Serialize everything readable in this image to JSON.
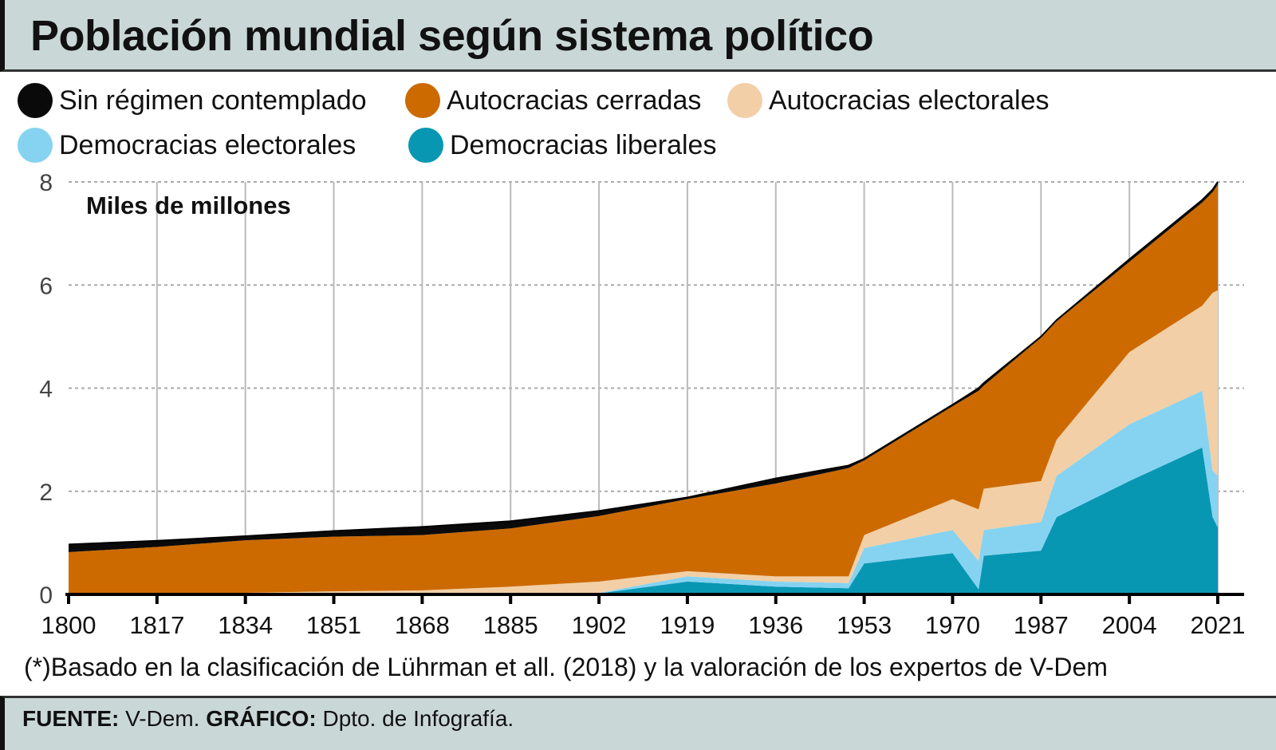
{
  "title": "Población mundial según sistema político",
  "legend": [
    {
      "label": "Sin régimen contemplado",
      "color": "#0a0a0a"
    },
    {
      "label": "Autocracias cerradas",
      "color": "#cc6a00"
    },
    {
      "label": "Autocracias electorales",
      "color": "#f2cfa6"
    },
    {
      "label": "Democracias electorales",
      "color": "#86d3f1"
    },
    {
      "label": "Democracias liberales",
      "color": "#0897b3"
    }
  ],
  "footnote": "(*)Basado en la clasificación de Lührman et all. (2018) y la valoración de los expertos de V-Dem",
  "footer": {
    "source_label": "FUENTE:",
    "source": "V-Dem.",
    "graphic_label": "GRÁFICO:",
    "graphic": "Dpto. de Infografía."
  },
  "chart_data": {
    "type": "area",
    "stacked": true,
    "ylabel": "Miles de millones",
    "ylim": [
      0,
      8
    ],
    "yticks": [
      0,
      2,
      4,
      6,
      8
    ],
    "xlim": [
      1800,
      2021
    ],
    "xticks": [
      1800,
      1817,
      1834,
      1851,
      1868,
      1885,
      1902,
      1919,
      1936,
      1953,
      1970,
      1987,
      2004,
      2021
    ],
    "grid": {
      "x": "solid",
      "y": "dotted"
    },
    "x": [
      1800,
      1817,
      1834,
      1851,
      1868,
      1885,
      1902,
      1919,
      1936,
      1950,
      1953,
      1970,
      1975,
      1976,
      1987,
      1990,
      2004,
      2018,
      2020,
      2021
    ],
    "series": [
      {
        "name": "Democracias liberales",
        "color": "#0897b3",
        "values": [
          0,
          0,
          0,
          0,
          0,
          0,
          0.02,
          0.25,
          0.15,
          0.12,
          0.6,
          0.8,
          0.1,
          0.75,
          0.85,
          1.5,
          2.2,
          2.85,
          1.5,
          1.3
        ]
      },
      {
        "name": "Democracias electorales",
        "color": "#86d3f1",
        "values": [
          0,
          0,
          0,
          0,
          0,
          0,
          0.01,
          0.1,
          0.1,
          0.1,
          0.3,
          0.45,
          0.55,
          0.5,
          0.55,
          0.8,
          1.1,
          1.1,
          0.9,
          1.0
        ]
      },
      {
        "name": "Autocracias electorales",
        "color": "#f2cfa6",
        "values": [
          0,
          0.02,
          0.03,
          0.06,
          0.08,
          0.15,
          0.22,
          0.1,
          0.1,
          0.13,
          0.25,
          0.6,
          1.0,
          0.8,
          0.8,
          0.7,
          1.4,
          1.65,
          3.45,
          3.6
        ]
      },
      {
        "name": "Autocracias cerradas",
        "color": "#cc6a00",
        "values": [
          0.82,
          0.9,
          1.02,
          1.06,
          1.07,
          1.13,
          1.27,
          1.4,
          1.8,
          2.1,
          1.45,
          1.8,
          2.3,
          2.0,
          2.78,
          2.3,
          1.75,
          2.0,
          1.95,
          2.05
        ]
      },
      {
        "name": "Sin régimen contemplado",
        "color": "#0a0a0a",
        "values": [
          0.15,
          0.12,
          0.08,
          0.11,
          0.16,
          0.14,
          0.1,
          0.03,
          0.1,
          0.05,
          0.03,
          0.03,
          0.05,
          0.05,
          0.02,
          0.02,
          0.05,
          0.05,
          0.05,
          0.05
        ]
      }
    ]
  }
}
